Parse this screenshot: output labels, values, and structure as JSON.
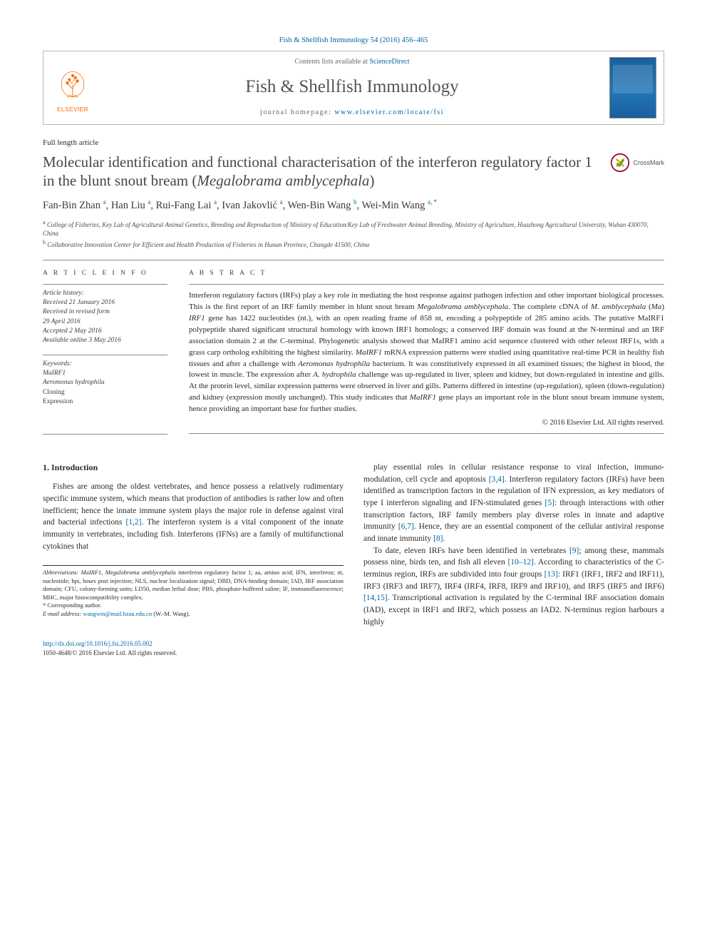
{
  "top_citation": "Fish & Shellfish Immunology 54 (2016) 456–465",
  "header": {
    "contents_prefix": "Contents lists available at ",
    "contents_link": "ScienceDirect",
    "journal_name": "Fish & Shellfish Immunology",
    "homepage_prefix": "journal homepage: ",
    "homepage_url": "www.elsevier.com/locate/fsi",
    "elsevier_label": "ELSEVIER"
  },
  "article_type": "Full length article",
  "title_parts": {
    "p1": "Molecular identification and functional characterisation of the interferon regulatory factor 1 in the blunt snout bream (",
    "p2": "Megalobrama amblycephala",
    "p3": ")"
  },
  "crossmark_label": "CrossMark",
  "authors_html": "Fan-Bin Zhan <sup>a</sup>, Han Liu <sup>a</sup>, Rui-Fang Lai <sup>a</sup>, Ivan Jakovlić <sup>a</sup>, Wen-Bin Wang <sup>b</sup>, Wei-Min Wang <sup>a, <span class=\"corr\">*</span></sup>",
  "affiliations": [
    {
      "sup": "a",
      "text": "College of Fisheries, Key Lab of Agricultural Animal Genetics, Breeding and Reproduction of Ministry of Education/Key Lab of Freshwater Animal Breeding, Ministry of Agriculture, Huazhong Agricultural University, Wuhan 430070, China"
    },
    {
      "sup": "b",
      "text": "Collaborative Innovation Center for Efficient and Health Production of Fisheries in Hunan Province, Changde 41500, China"
    }
  ],
  "section_labels": {
    "article_info": "A R T I C L E   I N F O",
    "abstract": "A B S T R A C T"
  },
  "history": {
    "label": "Article history:",
    "received": "Received 21 January 2016",
    "revised1": "Received in revised form",
    "revised2": "29 April 2016",
    "accepted": "Accepted 2 May 2016",
    "online": "Available online 3 May 2016"
  },
  "keywords": {
    "label": "Keywords:",
    "items": [
      {
        "text": "MaIRF1",
        "italic": true
      },
      {
        "text": "Aeromonas hydrophila",
        "italic": true
      },
      {
        "text": "Cloning",
        "italic": false
      },
      {
        "text": "Expression",
        "italic": false
      }
    ]
  },
  "abstract_text": "Interferon regulatory factors (IRFs) play a key role in mediating the host response against pathogen infection and other important biological processes. This is the first report of an IRF family member in blunt snout bream <span class=\"italic\">Megalobrama amblycephala</span>. The complete cDNA of <span class=\"italic\">M. amblycephala</span> (<span class=\"italic\">Ma</span>) <span class=\"italic\">IRF1</span> gene has 1422 nucleotides (nt.), with an open reading frame of 858 nt, encoding a polypeptide of 285 amino acids. The putative MaIRF1 polypeptide shared significant structural homology with known IRF1 homologs; a conserved IRF domain was found at the N-terminal and an IRF association domain 2 at the C-terminal. Phylogenetic analysis showed that MaIRF1 amino acid sequence clustered with other teleost IRF1s, with a grass carp ortholog exhibiting the highest similarity. <span class=\"italic\">MaIRF1</span> mRNA expression patterns were studied using quantitative real-time PCR in healthy fish tissues and after a challenge with <span class=\"italic\">Aeromonas hydrophila</span> bacterium. It was constitutively expressed in all examined tissues; the highest in blood, the lowest in muscle. The expression after <span class=\"italic\">A. hydrophila</span> challenge was up-regulated in liver, spleen and kidney, but down-regulated in intestine and gills. At the protein level, similar expression patterns were observed in liver and gills. Patterns differed in intestine (up-regulation), spleen (down-regulation) and kidney (expression mostly unchanged). This study indicates that <span class=\"italic\">MaIRF1</span> gene plays an important role in the blunt snout bream immune system, hence providing an important base for further studies.",
  "copyright": "© 2016 Elsevier Ltd. All rights reserved.",
  "section1": {
    "heading_num": "1.",
    "heading_text": "Introduction"
  },
  "body": {
    "left_p1": "Fishes are among the oldest vertebrates, and hence possess a relatively rudimentary specific immune system, which means that production of antibodies is rather low and often inefficient; hence the innate immune system plays the major role in defense against viral and bacterial infections <a class=\"ref\" href=\"#\">[1,2]</a>. The interferon system is a vital component of the innate immunity in vertebrates, including fish. Interferons (IFNs) are a family of multifunctional cytokines that",
    "right_p1": "play essential roles in cellular resistance response to viral infection, immuno-modulation, cell cycle and apoptosis <a class=\"ref\" href=\"#\">[3,4]</a>. Interferon regulatory factors (IRFs) have been identified as transcription factors in the regulation of IFN expression, as key mediators of type I interferon signaling and IFN-stimulated genes <a class=\"ref\" href=\"#\">[5]</a>: through interactions with other transcription factors, IRF family members play diverse roles in innate and adaptive immunity <a class=\"ref\" href=\"#\">[6,7]</a>. Hence, they are an essential component of the cellular antiviral response and innate immunity <a class=\"ref\" href=\"#\">[8]</a>.",
    "right_p2": "To date, eleven IRFs have been identified in vertebrates <a class=\"ref\" href=\"#\">[9]</a>; among these, mammals possess nine, birds ten, and fish all eleven <a class=\"ref\" href=\"#\">[10–12]</a>. According to characteristics of the C-terminus region, IRFs are subdivided into four groups <a class=\"ref\" href=\"#\">[13]</a>: IRF1 (IRF1, IRF2 and IRF11), IRF3 (IRF3 and IRF7), IRF4 (IRF4, IRF8, IRF9 and IRF10), and IRF5 (IRF5 and IRF6) <a class=\"ref\" href=\"#\">[14,15]</a>. Transcriptional activation is regulated by the C-terminal IRF association domain (IAD), except in IRF1 and IRF2, which possess an IAD2. N-terminus region harbours a highly"
  },
  "footnotes": {
    "abbrev_label": "Abbreviations:",
    "abbrev_text": " <span class=\"italic\">MaIRF1</span>, <span class=\"italic\">Megalobrama amblycephala</span> interferon regulatory factor 1; aa, amino acid; IFN, interferon; nt, nucleotide; hpi, hours post injection; NLS, nuclear localization signal; DBD, DNA-binding domain; IAD, IRF association domain; CFU, colony-forming units; LD50, median lethal dose; PBS, phosphate-buffered saline; IF, immunofluorescence; MHC, major histocompatibility complex.",
    "corr_label": "* Corresponding author.",
    "email_label": "E-mail address:",
    "email": "wangwm@mail.hzau.edu.cn",
    "email_suffix": " (W.-M. Wang)."
  },
  "bottom": {
    "doi": "http://dx.doi.org/10.1016/j.fsi.2016.05.002",
    "issn_line": "1050-4648/© 2016 Elsevier Ltd. All rights reserved."
  },
  "colors": {
    "link": "#0066a1",
    "orange": "#ff6c00",
    "text": "#2a2a2a",
    "rule": "#8a8a8a"
  }
}
